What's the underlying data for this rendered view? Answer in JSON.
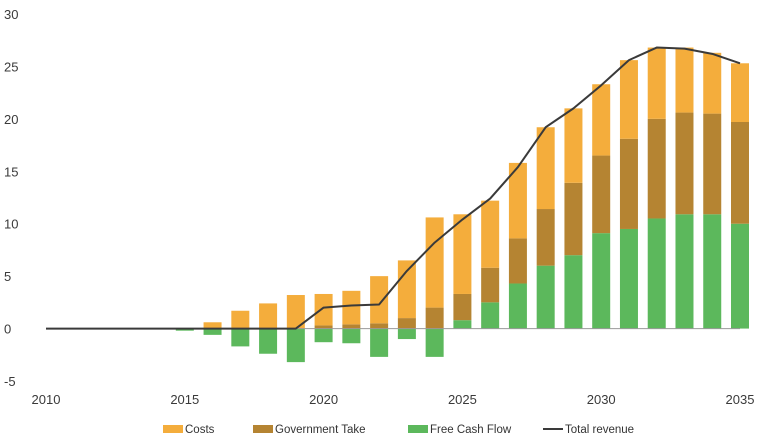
{
  "chart_data": {
    "type": "bar",
    "stacked": true,
    "title": "",
    "xlabel": "",
    "ylabel": "",
    "ylim": [
      -5,
      30
    ],
    "xlim": [
      2010,
      2035
    ],
    "y_ticks": [
      -5,
      0,
      5,
      10,
      15,
      20,
      25,
      30
    ],
    "y_tick_labels": [
      "-5",
      "0",
      "5",
      "10",
      "15",
      "20",
      "25",
      "30"
    ],
    "x_ticks": [
      2010,
      2015,
      2020,
      2025,
      2030,
      2035
    ],
    "x_tick_labels": [
      "2010",
      "2015",
      "2020",
      "2025",
      "2030",
      "2035"
    ],
    "grid": false,
    "legend_position": "bottom",
    "x": [
      2015,
      2016,
      2017,
      2018,
      2019,
      2020,
      2021,
      2022,
      2023,
      2024,
      2025,
      2026,
      2027,
      2028,
      2029,
      2030,
      2031,
      2032,
      2033,
      2034,
      2035
    ],
    "series": [
      {
        "name": "Free Cash Flow",
        "kind": "bar",
        "color": "#5cb85c",
        "values": [
          -0.2,
          -0.6,
          -1.7,
          -2.4,
          -3.2,
          -1.3,
          -1.4,
          -2.7,
          -1.0,
          -2.7,
          0.8,
          2.5,
          4.3,
          6.0,
          7.0,
          9.1,
          9.5,
          10.5,
          10.9,
          10.9,
          10.0
        ]
      },
      {
        "name": "Government Take",
        "kind": "bar",
        "color": "#b58432",
        "values": [
          0.0,
          0.0,
          0.0,
          0.0,
          0.0,
          0.3,
          0.4,
          0.5,
          1.0,
          2.0,
          2.5,
          3.3,
          4.3,
          5.4,
          6.9,
          7.4,
          8.6,
          9.5,
          9.7,
          9.6,
          9.7
        ]
      },
      {
        "name": "Costs",
        "kind": "bar",
        "color": "#f4ad3c",
        "values": [
          0.0,
          0.6,
          1.7,
          2.4,
          3.2,
          3.0,
          3.2,
          4.5,
          5.5,
          8.6,
          7.6,
          6.4,
          7.2,
          7.8,
          7.1,
          6.8,
          7.5,
          6.8,
          6.2,
          5.8,
          5.6
        ]
      },
      {
        "name": "Total revenue",
        "kind": "line",
        "color": "#3a3a3a",
        "x": [
          2010,
          2011,
          2012,
          2013,
          2014,
          2015,
          2016,
          2017,
          2018,
          2019,
          2020,
          2021,
          2022,
          2023,
          2024,
          2025,
          2026,
          2027,
          2028,
          2029,
          2030,
          2031,
          2032,
          2033,
          2034,
          2035
        ],
        "values": [
          0,
          0,
          0,
          0,
          0,
          0,
          0,
          0,
          0,
          0,
          2.0,
          2.2,
          2.3,
          5.5,
          8.2,
          10.4,
          12.4,
          15.4,
          19.2,
          21.0,
          23.2,
          25.6,
          26.8,
          26.7,
          26.2,
          25.3
        ]
      }
    ]
  }
}
